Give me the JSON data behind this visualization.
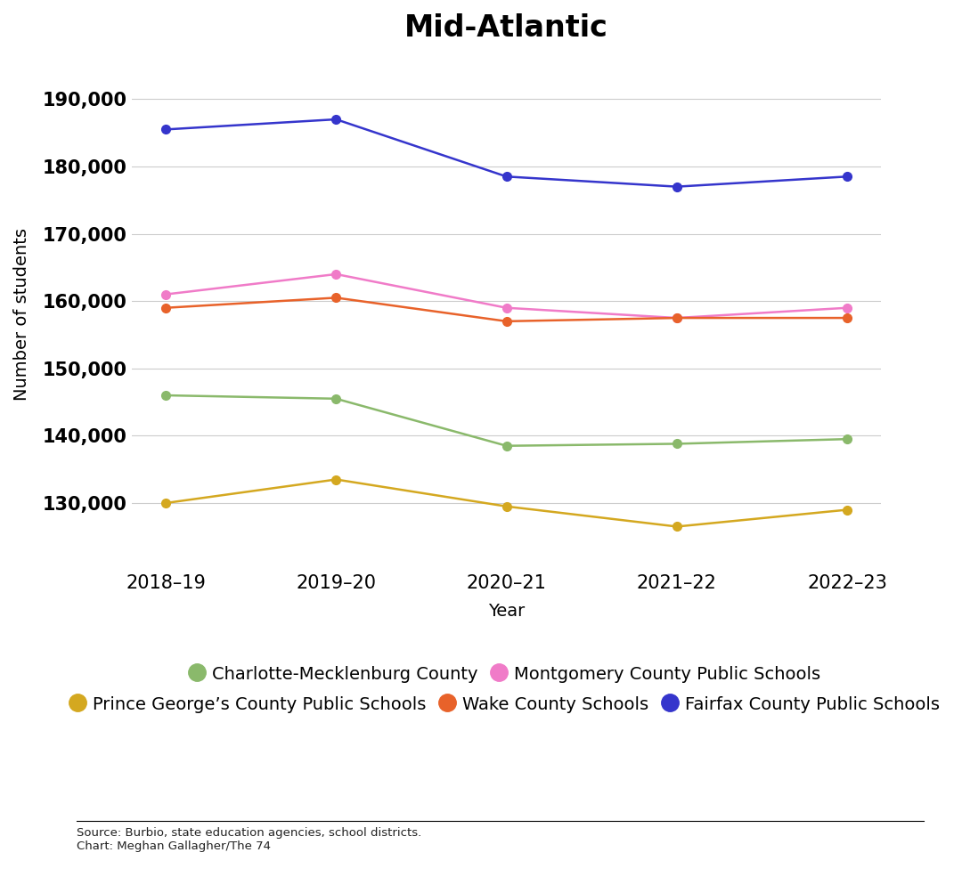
{
  "title": "Mid-Atlantic",
  "xlabel": "Year",
  "ylabel": "Number of students",
  "years": [
    "2018–19",
    "2019–20",
    "2020–21",
    "2021–22",
    "2022–23"
  ],
  "series": [
    {
      "name": "Charlotte-Mecklenburg County",
      "color": "#8ab96b",
      "values": [
        146000,
        145500,
        138500,
        138800,
        139500
      ]
    },
    {
      "name": "Montgomery County Public Schools",
      "color": "#f07bc8",
      "values": [
        161000,
        164000,
        159000,
        157500,
        159000
      ]
    },
    {
      "name": "Prince George’s County Public Schools",
      "color": "#d4a820",
      "values": [
        130000,
        133500,
        129500,
        126500,
        129000
      ]
    },
    {
      "name": "Wake County Schools",
      "color": "#e8622a",
      "values": [
        159000,
        160500,
        157000,
        157500,
        157500
      ]
    },
    {
      "name": "Fairfax County Public Schools",
      "color": "#3535cc",
      "values": [
        185500,
        187000,
        178500,
        177000,
        178500
      ]
    }
  ],
  "ylim": [
    120000,
    196000
  ],
  "yticks": [
    130000,
    140000,
    150000,
    160000,
    170000,
    180000,
    190000
  ],
  "background_color": "#ffffff",
  "grid_color": "#cccccc",
  "title_fontsize": 24,
  "label_fontsize": 14,
  "tick_fontsize": 15,
  "legend_fontsize": 14,
  "source_text": "Source: Burbio, state education agencies, school districts.\nChart: Meghan Gallagher/The 74"
}
